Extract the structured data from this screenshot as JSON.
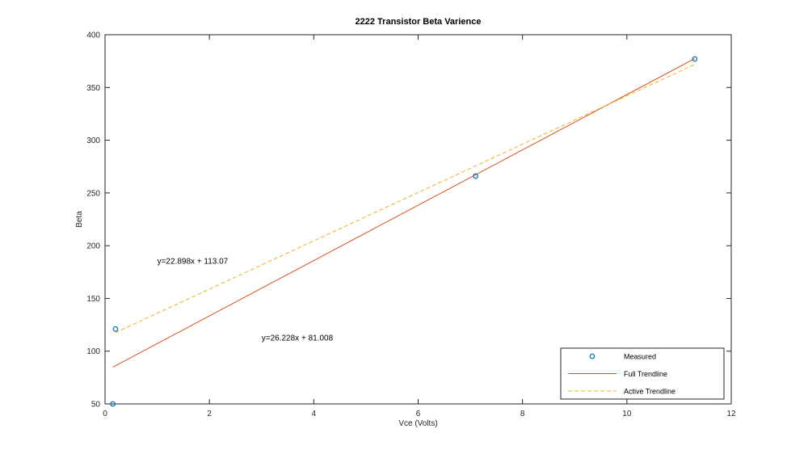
{
  "chart_data": {
    "type": "scatter",
    "title": "2222 Transistor Beta Varience",
    "xlabel": "Vce (Volts)",
    "ylabel": "Beta",
    "xlim": [
      0,
      12
    ],
    "ylim": [
      50,
      400
    ],
    "xticks": [
      0,
      2,
      4,
      6,
      8,
      10,
      12
    ],
    "yticks": [
      50,
      100,
      150,
      200,
      250,
      300,
      350,
      400
    ],
    "grid": false,
    "legend_position": "bottom-right",
    "series": [
      {
        "name": "Measured",
        "style": "markers",
        "marker": "circle",
        "color": "#0072bd",
        "x": [
          0.15,
          0.2,
          7.1,
          11.3
        ],
        "y": [
          50,
          121,
          266,
          377
        ]
      },
      {
        "name": "Full Trendline",
        "style": "solid",
        "color": "#d95319",
        "x": [
          0.15,
          11.3
        ],
        "y": [
          84.9,
          377.4
        ]
      },
      {
        "name": "Active Trendline",
        "style": "dashed",
        "color": "#edb120",
        "x": [
          0.2,
          11.3
        ],
        "y": [
          117.6,
          371.8
        ]
      }
    ],
    "annotations": [
      {
        "text": "y=22.898x + 113.07",
        "x": 1.0,
        "y": 183
      },
      {
        "text": "y=26.228x + 81.008",
        "x": 3.0,
        "y": 110
      }
    ]
  }
}
